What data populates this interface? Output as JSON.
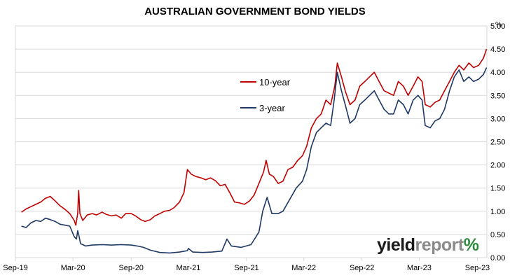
{
  "chart_data": {
    "type": "line",
    "title": "AUSTRALIAN GOVERNMENT BOND YIELDS",
    "unit_label": "%",
    "ylim": [
      0,
      5
    ],
    "y_ticks": [
      "0.00",
      "0.50",
      "1.00",
      "1.50",
      "2.00",
      "2.50",
      "3.00",
      "3.50",
      "4.00",
      "4.50",
      "5.00"
    ],
    "x_ticks": [
      {
        "label": "Sep-19",
        "date": "2019-09-01"
      },
      {
        "label": "Mar-20",
        "date": "2020-03-01"
      },
      {
        "label": "Sep-20",
        "date": "2020-09-01"
      },
      {
        "label": "Mar-21",
        "date": "2021-03-01"
      },
      {
        "label": "Sep-21",
        "date": "2021-09-01"
      },
      {
        "label": "Mar-22",
        "date": "2022-03-01"
      },
      {
        "label": "Sep-22",
        "date": "2022-09-01"
      },
      {
        "label": "Mar-23",
        "date": "2023-03-01"
      },
      {
        "label": "Sep-23",
        "date": "2023-09-01"
      }
    ],
    "xlim": [
      "2019-09-01",
      "2023-10-01"
    ],
    "grid": "horizontal",
    "legend_position": "center",
    "series": [
      {
        "name": "10-year",
        "color": "#c00000",
        "points": [
          [
            "2019-09-20",
            0.98
          ],
          [
            "2019-10-05",
            1.05
          ],
          [
            "2019-10-20",
            1.1
          ],
          [
            "2019-11-05",
            1.15
          ],
          [
            "2019-11-20",
            1.2
          ],
          [
            "2019-12-05",
            1.28
          ],
          [
            "2019-12-20",
            1.32
          ],
          [
            "2020-01-05",
            1.22
          ],
          [
            "2020-01-20",
            1.12
          ],
          [
            "2020-02-05",
            1.04
          ],
          [
            "2020-02-20",
            0.95
          ],
          [
            "2020-03-05",
            0.8
          ],
          [
            "2020-03-10",
            0.7
          ],
          [
            "2020-03-16",
            0.95
          ],
          [
            "2020-03-19",
            1.45
          ],
          [
            "2020-03-23",
            0.95
          ],
          [
            "2020-04-01",
            0.8
          ],
          [
            "2020-04-15",
            0.92
          ],
          [
            "2020-05-01",
            0.95
          ],
          [
            "2020-05-15",
            0.92
          ],
          [
            "2020-06-01",
            0.98
          ],
          [
            "2020-06-15",
            0.93
          ],
          [
            "2020-07-01",
            0.9
          ],
          [
            "2020-07-15",
            0.92
          ],
          [
            "2020-08-01",
            0.85
          ],
          [
            "2020-08-15",
            0.95
          ],
          [
            "2020-09-01",
            0.95
          ],
          [
            "2020-09-15",
            0.9
          ],
          [
            "2020-10-01",
            0.82
          ],
          [
            "2020-10-15",
            0.78
          ],
          [
            "2020-11-01",
            0.82
          ],
          [
            "2020-11-15",
            0.9
          ],
          [
            "2020-12-01",
            0.95
          ],
          [
            "2020-12-15",
            1.0
          ],
          [
            "2021-01-01",
            1.02
          ],
          [
            "2021-01-15",
            1.08
          ],
          [
            "2021-02-01",
            1.2
          ],
          [
            "2021-02-15",
            1.4
          ],
          [
            "2021-02-26",
            1.9
          ],
          [
            "2021-03-10",
            1.8
          ],
          [
            "2021-03-25",
            1.75
          ],
          [
            "2021-04-10",
            1.72
          ],
          [
            "2021-04-25",
            1.68
          ],
          [
            "2021-05-10",
            1.72
          ],
          [
            "2021-05-25",
            1.66
          ],
          [
            "2021-06-10",
            1.55
          ],
          [
            "2021-06-25",
            1.58
          ],
          [
            "2021-07-10",
            1.4
          ],
          [
            "2021-07-25",
            1.2
          ],
          [
            "2021-08-10",
            1.18
          ],
          [
            "2021-08-25",
            1.15
          ],
          [
            "2021-09-10",
            1.22
          ],
          [
            "2021-09-25",
            1.35
          ],
          [
            "2021-10-10",
            1.6
          ],
          [
            "2021-10-25",
            1.85
          ],
          [
            "2021-11-02",
            2.1
          ],
          [
            "2021-11-12",
            1.8
          ],
          [
            "2021-11-25",
            1.75
          ],
          [
            "2021-12-10",
            1.6
          ],
          [
            "2021-12-25",
            1.65
          ],
          [
            "2022-01-10",
            1.9
          ],
          [
            "2022-01-25",
            1.95
          ],
          [
            "2022-02-10",
            2.1
          ],
          [
            "2022-02-25",
            2.2
          ],
          [
            "2022-03-10",
            2.4
          ],
          [
            "2022-03-25",
            2.8
          ],
          [
            "2022-04-10",
            3.0
          ],
          [
            "2022-04-25",
            3.1
          ],
          [
            "2022-05-10",
            3.4
          ],
          [
            "2022-05-25",
            3.3
          ],
          [
            "2022-06-07",
            3.7
          ],
          [
            "2022-06-15",
            4.2
          ],
          [
            "2022-06-28",
            3.9
          ],
          [
            "2022-07-10",
            3.6
          ],
          [
            "2022-07-25",
            3.3
          ],
          [
            "2022-08-10",
            3.4
          ],
          [
            "2022-08-25",
            3.7
          ],
          [
            "2022-09-10",
            3.8
          ],
          [
            "2022-09-25",
            3.9
          ],
          [
            "2022-10-10",
            4.0
          ],
          [
            "2022-10-25",
            3.8
          ],
          [
            "2022-11-10",
            3.6
          ],
          [
            "2022-11-25",
            3.55
          ],
          [
            "2022-12-10",
            3.5
          ],
          [
            "2022-12-25",
            3.8
          ],
          [
            "2023-01-10",
            3.7
          ],
          [
            "2023-01-25",
            3.5
          ],
          [
            "2023-02-10",
            3.7
          ],
          [
            "2023-02-25",
            3.9
          ],
          [
            "2023-03-10",
            3.8
          ],
          [
            "2023-03-20",
            3.3
          ],
          [
            "2023-04-05",
            3.25
          ],
          [
            "2023-04-20",
            3.35
          ],
          [
            "2023-05-05",
            3.4
          ],
          [
            "2023-05-20",
            3.6
          ],
          [
            "2023-06-05",
            3.8
          ],
          [
            "2023-06-20",
            4.0
          ],
          [
            "2023-07-05",
            4.15
          ],
          [
            "2023-07-20",
            4.05
          ],
          [
            "2023-08-05",
            4.2
          ],
          [
            "2023-08-20",
            4.1
          ],
          [
            "2023-09-05",
            4.15
          ],
          [
            "2023-09-20",
            4.3
          ],
          [
            "2023-09-30",
            4.5
          ]
        ]
      },
      {
        "name": "3-year",
        "color": "#1f3864",
        "points": [
          [
            "2019-09-20",
            0.68
          ],
          [
            "2019-10-05",
            0.65
          ],
          [
            "2019-10-20",
            0.75
          ],
          [
            "2019-11-05",
            0.8
          ],
          [
            "2019-11-20",
            0.78
          ],
          [
            "2019-12-05",
            0.85
          ],
          [
            "2019-12-20",
            0.82
          ],
          [
            "2020-01-05",
            0.78
          ],
          [
            "2020-01-20",
            0.72
          ],
          [
            "2020-02-05",
            0.7
          ],
          [
            "2020-02-20",
            0.68
          ],
          [
            "2020-03-05",
            0.45
          ],
          [
            "2020-03-12",
            0.4
          ],
          [
            "2020-03-16",
            0.58
          ],
          [
            "2020-03-19",
            0.5
          ],
          [
            "2020-03-25",
            0.3
          ],
          [
            "2020-04-10",
            0.25
          ],
          [
            "2020-05-01",
            0.27
          ],
          [
            "2020-06-01",
            0.28
          ],
          [
            "2020-07-01",
            0.27
          ],
          [
            "2020-08-01",
            0.28
          ],
          [
            "2020-09-01",
            0.27
          ],
          [
            "2020-09-20",
            0.25
          ],
          [
            "2020-10-10",
            0.22
          ],
          [
            "2020-11-01",
            0.16
          ],
          [
            "2020-12-01",
            0.11
          ],
          [
            "2021-01-01",
            0.1
          ],
          [
            "2021-02-01",
            0.12
          ],
          [
            "2021-02-26",
            0.15
          ],
          [
            "2021-03-01",
            0.2
          ],
          [
            "2021-03-15",
            0.12
          ],
          [
            "2021-04-15",
            0.11
          ],
          [
            "2021-05-15",
            0.12
          ],
          [
            "2021-06-15",
            0.14
          ],
          [
            "2021-07-01",
            0.4
          ],
          [
            "2021-07-15",
            0.25
          ],
          [
            "2021-08-15",
            0.22
          ],
          [
            "2021-09-15",
            0.28
          ],
          [
            "2021-10-10",
            0.55
          ],
          [
            "2021-10-22",
            1.0
          ],
          [
            "2021-11-05",
            1.3
          ],
          [
            "2021-11-20",
            0.95
          ],
          [
            "2021-12-10",
            0.95
          ],
          [
            "2021-12-25",
            1.0
          ],
          [
            "2022-01-15",
            1.25
          ],
          [
            "2022-02-05",
            1.5
          ],
          [
            "2022-02-25",
            1.65
          ],
          [
            "2022-03-10",
            1.9
          ],
          [
            "2022-03-25",
            2.4
          ],
          [
            "2022-04-10",
            2.7
          ],
          [
            "2022-04-25",
            2.8
          ],
          [
            "2022-05-10",
            2.9
          ],
          [
            "2022-05-25",
            2.85
          ],
          [
            "2022-06-05",
            3.4
          ],
          [
            "2022-06-15",
            4.0
          ],
          [
            "2022-06-28",
            3.6
          ],
          [
            "2022-07-10",
            3.3
          ],
          [
            "2022-07-25",
            2.9
          ],
          [
            "2022-08-10",
            3.0
          ],
          [
            "2022-08-25",
            3.3
          ],
          [
            "2022-09-10",
            3.4
          ],
          [
            "2022-09-25",
            3.5
          ],
          [
            "2022-10-10",
            3.6
          ],
          [
            "2022-10-25",
            3.4
          ],
          [
            "2022-11-10",
            3.2
          ],
          [
            "2022-11-25",
            3.1
          ],
          [
            "2022-12-10",
            3.1
          ],
          [
            "2022-12-25",
            3.4
          ],
          [
            "2023-01-10",
            3.3
          ],
          [
            "2023-01-25",
            3.1
          ],
          [
            "2023-02-10",
            3.4
          ],
          [
            "2023-02-25",
            3.5
          ],
          [
            "2023-03-10",
            3.4
          ],
          [
            "2023-03-20",
            2.85
          ],
          [
            "2023-04-05",
            2.8
          ],
          [
            "2023-04-20",
            2.95
          ],
          [
            "2023-05-05",
            3.0
          ],
          [
            "2023-05-20",
            3.2
          ],
          [
            "2023-06-05",
            3.6
          ],
          [
            "2023-06-20",
            3.9
          ],
          [
            "2023-07-05",
            4.05
          ],
          [
            "2023-07-20",
            3.8
          ],
          [
            "2023-08-05",
            3.9
          ],
          [
            "2023-08-20",
            3.8
          ],
          [
            "2023-09-05",
            3.85
          ],
          [
            "2023-09-20",
            3.95
          ],
          [
            "2023-09-30",
            4.1
          ]
        ]
      }
    ]
  },
  "watermark": {
    "part1": "yield",
    "part2": "report",
    "part3": "%"
  }
}
